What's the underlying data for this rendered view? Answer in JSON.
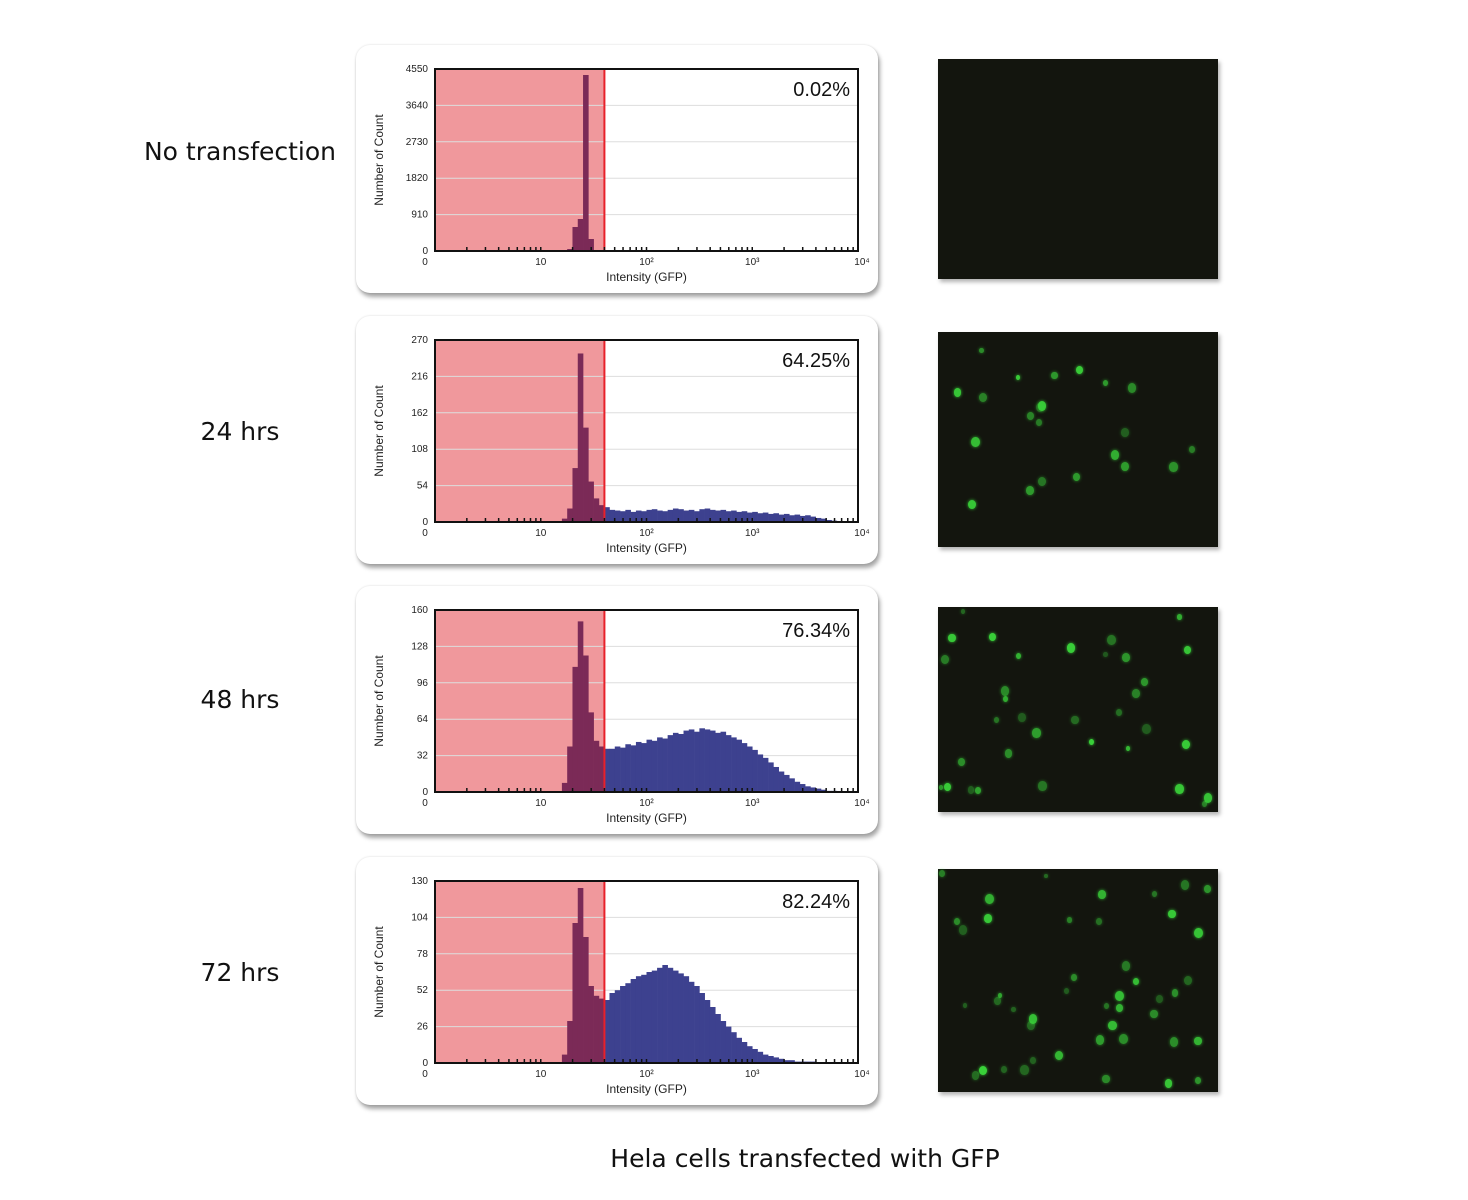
{
  "rows": [
    {
      "label": "No transfection"
    },
    {
      "label": "24 hrs"
    },
    {
      "label": "48 hrs"
    },
    {
      "label": "72 hrs"
    }
  ],
  "caption": "Hela cells transfected with GFP",
  "colors": {
    "gate_fill": "#f0989c",
    "gate_line": "#e8202a",
    "negative_bars": "#7b2a57",
    "positive_bars": "#3d418f",
    "micro_bg": "#13150e",
    "cell": "#3ad43a"
  },
  "chart_data": [
    {
      "type": "bar",
      "title": "No transfection",
      "xlabel": "Intensity (GFP)",
      "ylabel": "Number of Count",
      "xscale": "log",
      "xlim": [
        1,
        10000
      ],
      "x_tick_labels": [
        "0",
        "10",
        "10²",
        "10³",
        "10⁴"
      ],
      "ylim": [
        0,
        4550
      ],
      "y_ticks": [
        0,
        910,
        1820,
        2730,
        3640,
        4550
      ],
      "gate_threshold": 40,
      "positive_percent_label": "0.02%",
      "bin_log10_start": 1.0,
      "bin_log10_step": 0.05,
      "values": [
        0,
        0,
        0,
        0,
        0,
        50,
        600,
        800,
        4400,
        300,
        0,
        0,
        0,
        0,
        0,
        0,
        0,
        0,
        0,
        0,
        0,
        0,
        0,
        0,
        0,
        0,
        0,
        0,
        0,
        0,
        0,
        0,
        0,
        0,
        0,
        0,
        0,
        0,
        0,
        0,
        0,
        0,
        0,
        0,
        0,
        0,
        0,
        0,
        0,
        0,
        0,
        0,
        0,
        0,
        0,
        0,
        0,
        0,
        0,
        0
      ],
      "micro_cells": 0
    },
    {
      "type": "bar",
      "title": "24 hrs",
      "xlabel": "Intensity (GFP)",
      "ylabel": "Number of Count",
      "xscale": "log",
      "xlim": [
        1,
        10000
      ],
      "x_tick_labels": [
        "0",
        "10",
        "10²",
        "10³",
        "10⁴"
      ],
      "ylim": [
        0,
        270
      ],
      "y_ticks": [
        0,
        54,
        108,
        162,
        216,
        270
      ],
      "gate_threshold": 40,
      "positive_percent_label": "64.25%",
      "bin_log10_start": 1.0,
      "bin_log10_step": 0.05,
      "values": [
        0,
        0,
        0,
        0,
        5,
        20,
        80,
        250,
        140,
        60,
        35,
        25,
        22,
        18,
        17,
        16,
        18,
        15,
        17,
        16,
        18,
        19,
        17,
        16,
        18,
        20,
        19,
        17,
        18,
        16,
        19,
        20,
        18,
        17,
        18,
        16,
        17,
        15,
        16,
        14,
        15,
        13,
        14,
        12,
        13,
        11,
        12,
        10,
        11,
        9,
        10,
        8,
        6,
        5,
        3,
        2,
        1,
        0,
        0,
        0
      ],
      "micro_cells": 22
    },
    {
      "type": "bar",
      "title": "48 hrs",
      "xlabel": "Intensity (GFP)",
      "ylabel": "Number of Count",
      "xscale": "log",
      "xlim": [
        1,
        10000
      ],
      "x_tick_labels": [
        "0",
        "10",
        "10²",
        "10³",
        "10⁴"
      ],
      "ylim": [
        0,
        160
      ],
      "y_ticks": [
        0,
        32,
        64,
        96,
        128,
        160
      ],
      "gate_threshold": 40,
      "positive_percent_label": "76.34%",
      "bin_log10_start": 1.0,
      "bin_log10_step": 0.05,
      "values": [
        0,
        0,
        0,
        0,
        8,
        40,
        110,
        150,
        120,
        70,
        45,
        40,
        38,
        38,
        40,
        39,
        42,
        41,
        44,
        43,
        46,
        45,
        48,
        47,
        50,
        52,
        51,
        54,
        55,
        53,
        56,
        55,
        54,
        52,
        53,
        50,
        48,
        46,
        43,
        40,
        37,
        33,
        30,
        26,
        22,
        18,
        15,
        12,
        9,
        7,
        5,
        4,
        3,
        2,
        1,
        1,
        0,
        0,
        0,
        0
      ],
      "micro_cells": 34
    },
    {
      "type": "bar",
      "title": "72 hrs",
      "xlabel": "Intensity (GFP)",
      "ylabel": "Number of Count",
      "xscale": "log",
      "xlim": [
        1,
        10000
      ],
      "x_tick_labels": [
        "0",
        "10",
        "10²",
        "10³",
        "10⁴"
      ],
      "ylim": [
        0,
        130
      ],
      "y_ticks": [
        0,
        26,
        52,
        78,
        104,
        130
      ],
      "gate_threshold": 40,
      "positive_percent_label": "82.24%",
      "bin_log10_start": 1.0,
      "bin_log10_step": 0.05,
      "values": [
        0,
        0,
        0,
        0,
        6,
        30,
        100,
        125,
        90,
        55,
        48,
        46,
        45,
        50,
        52,
        55,
        57,
        60,
        62,
        63,
        65,
        66,
        68,
        70,
        68,
        66,
        64,
        62,
        58,
        55,
        50,
        45,
        40,
        35,
        30,
        26,
        22,
        18,
        15,
        12,
        10,
        8,
        6,
        5,
        4,
        3,
        2,
        2,
        1,
        1,
        1,
        1,
        0,
        0,
        0,
        0,
        0,
        0,
        0,
        0
      ],
      "micro_cells": 45
    }
  ]
}
